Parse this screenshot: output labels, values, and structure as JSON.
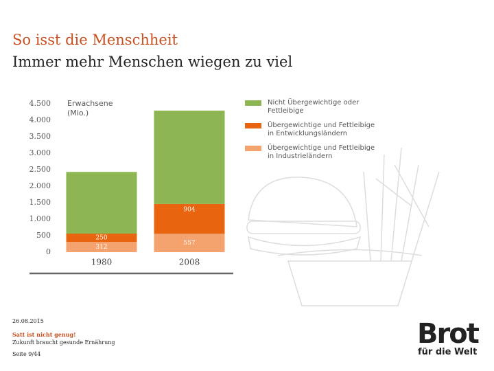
{
  "header": {
    "title": "So isst die Menschheit",
    "subtitle": "Immer mehr Menschen wiegen zu viel"
  },
  "chart_data": {
    "type": "stacked_bar",
    "y_label": "Erwachsene (Mio.)",
    "categories": [
      "1980",
      "2008"
    ],
    "series": [
      {
        "name": "Nicht Übergewichtige oder Fettleibige",
        "color": "#8db552",
        "values": [
          1870,
          2830
        ]
      },
      {
        "name": "Übergewichtige und Fettleibige in Entwicklungsländern",
        "color": "#e8640f",
        "values": [
          250,
          904
        ]
      },
      {
        "name": "Übergewichtige und Fettleibige in Industrieländern",
        "color": "#f4a36e",
        "values": [
          312,
          557
        ]
      }
    ],
    "show_value_labels": [
      false,
      true,
      true
    ],
    "ylim": [
      0,
      4500
    ],
    "yticks": [
      0,
      500,
      {
        "value": 1000,
        "label": "1.000"
      },
      {
        "value": 1500,
        "label": "1.500"
      },
      {
        "value": 2000,
        "label": "2.000"
      },
      {
        "value": 2500,
        "label": "2.500"
      },
      {
        "value": 3000,
        "label": "3.000"
      },
      {
        "value": 3500,
        "label": "3.500"
      },
      {
        "value": 4000,
        "label": "4.000"
      },
      {
        "value": 4500,
        "label": "4.500"
      }
    ]
  },
  "footer": {
    "date": "26.08.2015",
    "slogan": "Satt ist nicht genug!",
    "subline": "Zukunft braucht gesunde Ernährung",
    "page": "Seite 9/44"
  },
  "logo": {
    "word": "Brot",
    "tagline": "für die Welt"
  }
}
